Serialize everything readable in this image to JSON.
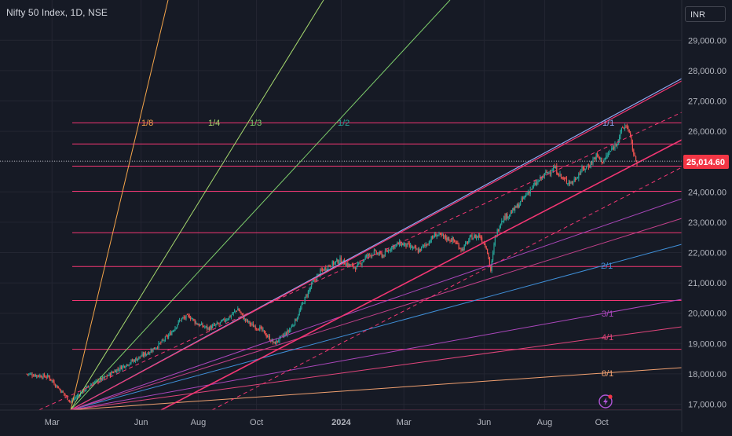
{
  "header": {
    "title": "Nifty 50 Index, 1D, NSE",
    "currency": "INR"
  },
  "colors": {
    "background": "#161a25",
    "grid": "#232632",
    "axis_text": "#b2b5be",
    "up_candle": "#26a69a",
    "down_candle": "#ef5350",
    "horizontal_levels": "#f23673",
    "price_tag": "#f23645",
    "fan_1_8": "#f5a54a",
    "fan_1_4": "#a5d86e",
    "fan_1_3": "#7ecf6c",
    "fan_1_2": "#26a69a",
    "fan_1_1": "#8fa8f2",
    "fan_2_1": "#3f8fd8",
    "fan_3_1": "#ab47bc",
    "fan_4_1": "#e0457b",
    "fan_8_1": "#f0a070",
    "channel": "#f23673"
  },
  "chart_data": {
    "type": "candlestick",
    "symbol": "Nifty 50 Index",
    "interval": "1D",
    "exchange": "NSE",
    "x_tick_labels": [
      "Mar",
      "Jun",
      "Aug",
      "Oct",
      "2024",
      "Mar",
      "Jun",
      "Aug",
      "Oct"
    ],
    "y_tick_labels": [
      "29,000.00",
      "28,000.00",
      "27,000.00",
      "26,000.00",
      "25,000.00",
      "24,000.00",
      "23,000.00",
      "22,000.00",
      "21,000.00",
      "20,000.00",
      "19,000.00",
      "18,000.00",
      "17,000.00"
    ],
    "y_range": [
      16700,
      29900
    ],
    "current_price": 25014.6,
    "current_price_label": "25,014.60",
    "price_path": [
      [
        -40,
        18000
      ],
      [
        -20,
        17900
      ],
      [
        0,
        17080
      ],
      [
        10,
        17400
      ],
      [
        20,
        17700
      ],
      [
        30,
        17850
      ],
      [
        40,
        18100
      ],
      [
        50,
        18300
      ],
      [
        60,
        18500
      ],
      [
        70,
        18700
      ],
      [
        80,
        18950
      ],
      [
        90,
        19300
      ],
      [
        100,
        19800
      ],
      [
        108,
        19900
      ],
      [
        115,
        19650
      ],
      [
        125,
        19500
      ],
      [
        135,
        19650
      ],
      [
        145,
        19900
      ],
      [
        152,
        20150
      ],
      [
        158,
        19800
      ],
      [
        165,
        19600
      ],
      [
        172,
        19500
      ],
      [
        180,
        19200
      ],
      [
        185,
        19000
      ],
      [
        190,
        19150
      ],
      [
        198,
        19400
      ],
      [
        205,
        19800
      ],
      [
        212,
        20400
      ],
      [
        220,
        21000
      ],
      [
        228,
        21400
      ],
      [
        236,
        21600
      ],
      [
        245,
        21750
      ],
      [
        252,
        21600
      ],
      [
        260,
        21500
      ],
      [
        268,
        21850
      ],
      [
        276,
        22000
      ],
      [
        284,
        21900
      ],
      [
        292,
        22200
      ],
      [
        300,
        22300
      ],
      [
        308,
        22200
      ],
      [
        316,
        22050
      ],
      [
        324,
        22300
      ],
      [
        332,
        22600
      ],
      [
        340,
        22500
      ],
      [
        348,
        22400
      ],
      [
        356,
        22100
      ],
      [
        364,
        22500
      ],
      [
        372,
        22550
      ],
      [
        378,
        22200
      ],
      [
        382,
        21400
      ],
      [
        386,
        22500
      ],
      [
        392,
        23100
      ],
      [
        400,
        23300
      ],
      [
        408,
        23600
      ],
      [
        416,
        24000
      ],
      [
        424,
        24300
      ],
      [
        432,
        24600
      ],
      [
        440,
        24800
      ],
      [
        448,
        24400
      ],
      [
        456,
        24300
      ],
      [
        464,
        24700
      ],
      [
        472,
        24900
      ],
      [
        478,
        25200
      ],
      [
        484,
        25000
      ],
      [
        490,
        25300
      ],
      [
        496,
        25600
      ],
      [
        502,
        26100
      ],
      [
        506,
        26200
      ],
      [
        510,
        25600
      ],
      [
        513,
        25100
      ],
      [
        515,
        25014.6
      ]
    ],
    "horizontal_levels": [
      26277,
      25580,
      24850,
      24020,
      22655,
      21540,
      20420,
      18810,
      16810
    ],
    "fan_labels": [
      {
        "label": "1/8",
        "color_key": "fan_1_8"
      },
      {
        "label": "1/4",
        "color_key": "fan_1_4"
      },
      {
        "label": "1/3",
        "color_key": "fan_1_3"
      },
      {
        "label": "1/2",
        "color_key": "fan_1_2"
      },
      {
        "label": "1/1",
        "color_key": "fan_1_1"
      },
      {
        "label": "2/1",
        "color_key": "fan_2_1"
      },
      {
        "label": "3/1",
        "color_key": "fan_3_1"
      },
      {
        "label": "4/1",
        "color_key": "fan_4_1"
      },
      {
        "label": "8/1",
        "color_key": "fan_8_1"
      }
    ]
  }
}
